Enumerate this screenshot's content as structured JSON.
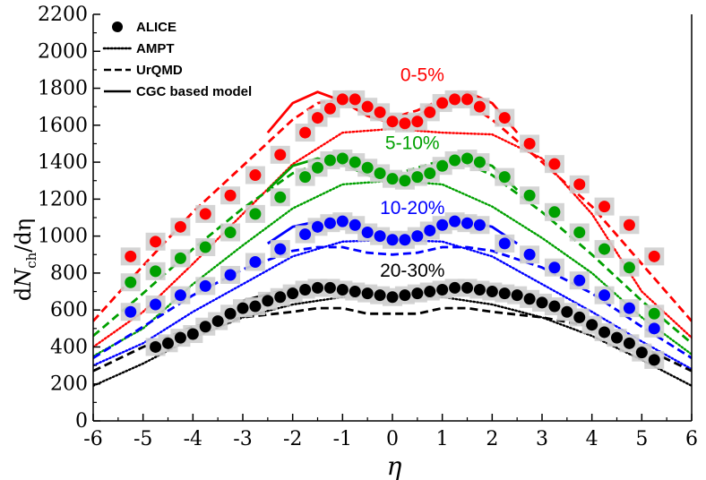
{
  "chart_data": {
    "type": "scatter",
    "xlabel": "η",
    "ylabel": "dN_ch/dη",
    "ylabel_parts": {
      "d1": "d",
      "N": "N",
      "sub": "ch",
      "rest": "/dη"
    },
    "xlim": [
      -6,
      6
    ],
    "ylim": [
      0,
      2200
    ],
    "xticks": [
      -6,
      -5,
      -4,
      -3,
      -2,
      -1,
      0,
      1,
      2,
      3,
      4,
      5,
      6
    ],
    "yticks": [
      0,
      200,
      400,
      600,
      800,
      1000,
      1200,
      1400,
      1600,
      1800,
      2000,
      2200
    ],
    "legend": {
      "position": "top-left",
      "entries": [
        {
          "label": "ALICE",
          "style": "marker"
        },
        {
          "label": "AMPT",
          "style": "dotted"
        },
        {
          "label": "UrQMD",
          "style": "dashed"
        },
        {
          "label": "CGC based model",
          "style": "solid"
        }
      ]
    },
    "series": [
      {
        "name": "0-5%",
        "color": "#ff0000",
        "alice": {
          "x": [
            -5.25,
            -4.75,
            -4.25,
            -3.75,
            -3.25,
            -2.75,
            -2.25,
            -1.75,
            -1.5,
            -1.25,
            -1,
            -0.75,
            -0.5,
            -0.25,
            0,
            0.25,
            0.5,
            0.75,
            1,
            1.25,
            1.5,
            1.75,
            2.25,
            2.75,
            3.25,
            3.75,
            4.25,
            4.75,
            5.25
          ],
          "y": [
            890,
            970,
            1050,
            1120,
            1220,
            1330,
            1440,
            1560,
            1640,
            1690,
            1740,
            1740,
            1700,
            1670,
            1620,
            1610,
            1620,
            1670,
            1720,
            1740,
            1740,
            1700,
            1640,
            1500,
            1390,
            1280,
            1160,
            1060,
            890
          ]
        },
        "ampt": {
          "x": [
            -6,
            -5,
            -4,
            -3,
            -2,
            -1,
            0,
            1,
            2,
            3,
            4,
            5,
            6
          ],
          "y": [
            400,
            590,
            850,
            1120,
            1390,
            1560,
            1580,
            1560,
            1550,
            1420,
            1120,
            700,
            450
          ]
        },
        "urqmd": {
          "x": [
            -6,
            -5,
            -4,
            -3,
            -2,
            -1.5,
            -1,
            -0.5,
            0,
            0.5,
            1,
            1.5,
            2,
            3,
            4,
            5,
            6
          ],
          "y": [
            540,
            840,
            1130,
            1380,
            1630,
            1720,
            1740,
            1680,
            1640,
            1680,
            1740,
            1720,
            1630,
            1400,
            1160,
            850,
            540
          ]
        },
        "cgc": {
          "x": [
            -2.5,
            -2,
            -1.5,
            -1,
            -0.5,
            0,
            0.5,
            1,
            1.5,
            2,
            2.5
          ],
          "y": [
            1560,
            1720,
            1780,
            1730,
            1650,
            1610,
            1650,
            1730,
            1780,
            1720,
            1560
          ]
        }
      },
      {
        "name": "5-10%",
        "color": "#00a000",
        "alice": {
          "x": [
            -5.25,
            -4.75,
            -4.25,
            -3.75,
            -3.25,
            -2.75,
            -2.25,
            -1.75,
            -1.5,
            -1.25,
            -1,
            -0.75,
            -0.5,
            -0.25,
            0,
            0.25,
            0.5,
            0.75,
            1,
            1.25,
            1.5,
            1.75,
            2.25,
            2.75,
            3.25,
            3.75,
            4.25,
            4.75,
            5.25
          ],
          "y": [
            750,
            810,
            880,
            940,
            1020,
            1120,
            1210,
            1320,
            1370,
            1410,
            1420,
            1400,
            1370,
            1340,
            1310,
            1300,
            1320,
            1340,
            1380,
            1410,
            1420,
            1400,
            1320,
            1220,
            1130,
            1020,
            930,
            830,
            580
          ]
        },
        "ampt": {
          "x": [
            -6,
            -5,
            -4,
            -3,
            -2,
            -1,
            0,
            1,
            2,
            3,
            4,
            5,
            6
          ],
          "y": [
            350,
            500,
            740,
            950,
            1150,
            1280,
            1300,
            1280,
            1160,
            990,
            800,
            560,
            360
          ]
        },
        "urqmd": {
          "x": [
            -6,
            -5,
            -4,
            -3,
            -2,
            -1.5,
            -1,
            -0.5,
            0,
            0.5,
            1,
            1.5,
            2,
            3,
            4,
            5,
            6
          ],
          "y": [
            460,
            690,
            930,
            1150,
            1340,
            1390,
            1410,
            1370,
            1330,
            1370,
            1410,
            1390,
            1330,
            1130,
            900,
            650,
            420
          ]
        },
        "cgc": {
          "x": [
            -2.5,
            -2,
            -1.5,
            -1,
            -0.5,
            0,
            0.5,
            1,
            1.5,
            2,
            2.5
          ],
          "y": [
            1250,
            1380,
            1420,
            1390,
            1330,
            1300,
            1330,
            1390,
            1420,
            1380,
            1250
          ]
        }
      },
      {
        "name": "10-20%",
        "color": "#0000ff",
        "alice": {
          "x": [
            -5.25,
            -4.75,
            -4.25,
            -3.75,
            -3.25,
            -2.75,
            -2.25,
            -1.75,
            -1.5,
            -1.25,
            -1,
            -0.75,
            -0.5,
            -0.25,
            0,
            0.25,
            0.5,
            0.75,
            1,
            1.25,
            1.5,
            1.75,
            2.25,
            2.75,
            3.25,
            3.75,
            4.25,
            4.75,
            5.25
          ],
          "y": [
            590,
            630,
            680,
            730,
            790,
            860,
            930,
            1010,
            1050,
            1070,
            1080,
            1060,
            1020,
            1000,
            980,
            980,
            1000,
            1030,
            1060,
            1080,
            1070,
            1060,
            960,
            900,
            830,
            760,
            680,
            610,
            500
          ]
        },
        "ampt": {
          "x": [
            -6,
            -5,
            -4,
            -3,
            -2,
            -1,
            0,
            1,
            2,
            3,
            4,
            5,
            6
          ],
          "y": [
            300,
            420,
            590,
            740,
            890,
            970,
            980,
            970,
            890,
            740,
            590,
            430,
            280
          ]
        },
        "urqmd": {
          "x": [
            -6,
            -5,
            -4,
            -3,
            -2,
            -1.5,
            -1,
            -0.5,
            0,
            0.5,
            1,
            1.5,
            2,
            3,
            4,
            5,
            6
          ],
          "y": [
            340,
            510,
            680,
            820,
            920,
            940,
            940,
            910,
            900,
            910,
            940,
            940,
            920,
            830,
            690,
            510,
            340
          ]
        },
        "cgc": {
          "x": [
            -2.5,
            -2,
            -1.5,
            -1,
            -0.5,
            0,
            0.5,
            1,
            1.5,
            2,
            2.5
          ],
          "y": [
            960,
            1050,
            1080,
            1060,
            1010,
            990,
            1010,
            1060,
            1080,
            1050,
            960
          ]
        }
      },
      {
        "name": "20-30%",
        "color": "#000000",
        "alice": {
          "x": [
            -4.75,
            -4.5,
            -4.25,
            -4,
            -3.75,
            -3.5,
            -3.25,
            -3,
            -2.75,
            -2.5,
            -2.25,
            -2,
            -1.75,
            -1.5,
            -1.25,
            -1,
            -0.75,
            -0.5,
            -0.25,
            0,
            0.25,
            0.5,
            0.75,
            1,
            1.25,
            1.5,
            1.75,
            2,
            2.25,
            2.5,
            2.75,
            3,
            3.25,
            3.5,
            3.75,
            4,
            4.25,
            4.5,
            4.75,
            5,
            5.25
          ],
          "y": [
            400,
            420,
            450,
            470,
            510,
            540,
            580,
            610,
            620,
            650,
            670,
            690,
            710,
            720,
            720,
            710,
            700,
            690,
            680,
            670,
            680,
            690,
            700,
            710,
            720,
            720,
            710,
            700,
            690,
            680,
            660,
            640,
            620,
            590,
            560,
            520,
            480,
            450,
            420,
            370,
            330
          ]
        },
        "ampt": {
          "x": [
            -6,
            -5,
            -4,
            -3,
            -2,
            -1,
            0,
            1,
            2,
            3,
            4,
            5,
            6
          ],
          "y": [
            190,
            310,
            450,
            560,
            630,
            670,
            670,
            670,
            630,
            560,
            460,
            330,
            190
          ]
        },
        "urqmd": {
          "x": [
            -6,
            -5,
            -4,
            -3,
            -2,
            -1.5,
            -1,
            -0.5,
            0,
            0.5,
            1,
            1.5,
            2,
            3,
            4,
            5,
            6
          ],
          "y": [
            270,
            400,
            510,
            560,
            590,
            610,
            610,
            580,
            580,
            580,
            610,
            610,
            590,
            560,
            510,
            400,
            270
          ]
        },
        "cgc": {
          "x": [
            -3,
            -2,
            -1.5,
            -1,
            -0.5,
            0,
            0.5,
            1,
            1.5,
            2,
            3
          ],
          "y": [
            650,
            720,
            730,
            710,
            690,
            680,
            690,
            710,
            730,
            720,
            650
          ]
        }
      }
    ]
  }
}
